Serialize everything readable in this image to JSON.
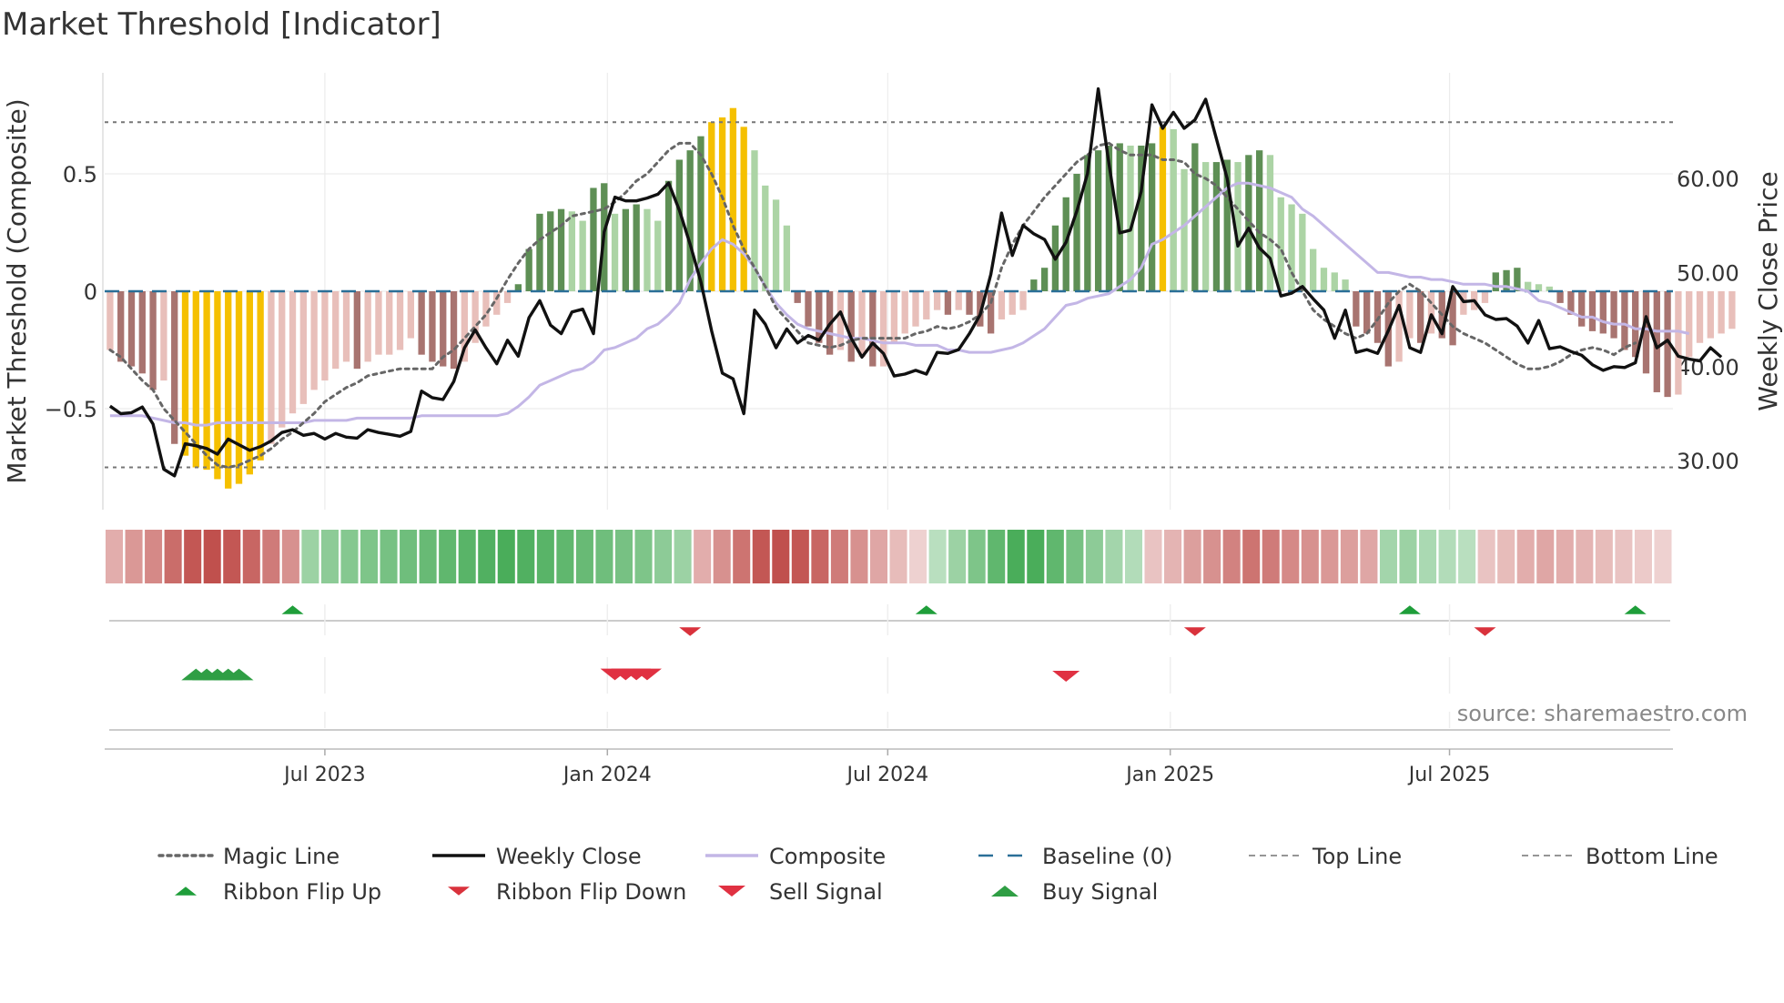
{
  "chart_data": {
    "type": "combo",
    "title": "Market Threshold [Indicator]",
    "ylabel_left": "Market Threshold (Composite)",
    "ylabel_right": "Weekly Close Price",
    "ylim_left": [
      -0.93,
      0.93
    ],
    "ylim_right": [
      24.8,
      71.2
    ],
    "yticks_left": [
      {
        "label": "0.5",
        "value": 0.5
      },
      {
        "label": "0",
        "value": 0
      },
      {
        "label": "−0.5",
        "value": -0.5
      }
    ],
    "yticks_right": [
      {
        "label": "60.00",
        "value": 60
      },
      {
        "label": "50.00",
        "value": 50
      },
      {
        "label": "40.00",
        "value": 40
      },
      {
        "label": "30.00",
        "value": 30
      }
    ],
    "x_range": [
      0,
      146
    ],
    "xticks": [
      {
        "label": "Jul 2023",
        "week": 20.5
      },
      {
        "label": "Jan 2024",
        "week": 46.8
      },
      {
        "label": "Jul 2024",
        "week": 72.9
      },
      {
        "label": "Jan 2025",
        "week": 99.2
      },
      {
        "label": "Jul 2025",
        "week": 125.2
      }
    ],
    "top_line": 0.72,
    "bottom_line": -0.75,
    "baseline": 0,
    "composite_bars": [
      -0.25,
      -0.3,
      -0.32,
      -0.35,
      -0.42,
      -0.38,
      -0.65,
      -0.7,
      -0.75,
      -0.76,
      -0.8,
      -0.84,
      -0.82,
      -0.78,
      -0.72,
      -0.65,
      -0.58,
      -0.52,
      -0.48,
      -0.42,
      -0.38,
      -0.33,
      -0.3,
      -0.33,
      -0.3,
      -0.27,
      -0.27,
      -0.25,
      -0.2,
      -0.27,
      -0.3,
      -0.32,
      -0.33,
      -0.3,
      -0.22,
      -0.15,
      -0.1,
      -0.05,
      0.03,
      0.18,
      0.33,
      0.34,
      0.35,
      0.34,
      0.3,
      0.44,
      0.46,
      0.33,
      0.35,
      0.37,
      0.35,
      0.3,
      0.47,
      0.56,
      0.6,
      0.66,
      0.72,
      0.74,
      0.78,
      0.7,
      0.6,
      0.45,
      0.39,
      0.28,
      -0.05,
      -0.15,
      -0.22,
      -0.27,
      -0.25,
      -0.3,
      -0.28,
      -0.32,
      -0.32,
      -0.22,
      -0.18,
      -0.15,
      -0.12,
      -0.08,
      -0.1,
      -0.08,
      -0.1,
      -0.15,
      -0.18,
      -0.12,
      -0.1,
      -0.08,
      0.05,
      0.1,
      0.28,
      0.4,
      0.5,
      0.58,
      0.6,
      0.62,
      0.63,
      0.62,
      0.62,
      0.63,
      0.7,
      0.69,
      0.52,
      0.63,
      0.55,
      0.55,
      0.56,
      0.55,
      0.58,
      0.6,
      0.58,
      0.4,
      0.37,
      0.33,
      0.18,
      0.1,
      0.08,
      0.05,
      -0.15,
      -0.18,
      -0.22,
      -0.32,
      -0.3,
      -0.2,
      -0.22,
      -0.18,
      -0.2,
      -0.23,
      -0.1,
      -0.08,
      -0.05,
      0.08,
      0.09,
      0.1,
      0.04,
      0.03,
      0.02,
      -0.05,
      -0.1,
      -0.15,
      -0.17,
      -0.18,
      -0.2,
      -0.25,
      -0.28,
      -0.35,
      -0.43,
      -0.45,
      -0.44,
      -0.28,
      -0.22,
      -0.2,
      -0.18,
      -0.16
    ],
    "composite_line": [
      -0.53,
      -0.53,
      -0.53,
      -0.53,
      -0.54,
      -0.55,
      -0.56,
      -0.56,
      -0.57,
      -0.57,
      -0.56,
      -0.56,
      -0.56,
      -0.56,
      -0.56,
      -0.56,
      -0.56,
      -0.56,
      -0.56,
      -0.55,
      -0.55,
      -0.55,
      -0.55,
      -0.54,
      -0.54,
      -0.54,
      -0.54,
      -0.54,
      -0.54,
      -0.53,
      -0.53,
      -0.53,
      -0.53,
      -0.53,
      -0.53,
      -0.53,
      -0.53,
      -0.52,
      -0.49,
      -0.45,
      -0.4,
      -0.38,
      -0.36,
      -0.34,
      -0.33,
      -0.3,
      -0.25,
      -0.24,
      -0.22,
      -0.2,
      -0.16,
      -0.14,
      -0.1,
      -0.05,
      0.05,
      0.12,
      0.18,
      0.22,
      0.2,
      0.16,
      0.1,
      0.02,
      -0.05,
      -0.1,
      -0.14,
      -0.16,
      -0.17,
      -0.18,
      -0.19,
      -0.2,
      -0.2,
      -0.21,
      -0.22,
      -0.22,
      -0.22,
      -0.23,
      -0.23,
      -0.23,
      -0.25,
      -0.25,
      -0.26,
      -0.26,
      -0.26,
      -0.25,
      -0.24,
      -0.22,
      -0.19,
      -0.16,
      -0.11,
      -0.06,
      -0.05,
      -0.03,
      -0.02,
      -0.01,
      0.02,
      0.05,
      0.1,
      0.2,
      0.22,
      0.25,
      0.28,
      0.32,
      0.36,
      0.4,
      0.44,
      0.46,
      0.46,
      0.45,
      0.44,
      0.42,
      0.4,
      0.35,
      0.32,
      0.28,
      0.24,
      0.2,
      0.16,
      0.12,
      0.08,
      0.08,
      0.07,
      0.06,
      0.06,
      0.05,
      0.05,
      0.04,
      0.03,
      0.03,
      0.03,
      0.02,
      0.02,
      0.01,
      0.0,
      -0.04,
      -0.05,
      -0.07,
      -0.09,
      -0.11,
      -0.11,
      -0.13,
      -0.14,
      -0.14,
      -0.16,
      -0.16,
      -0.17,
      -0.17,
      -0.17,
      -0.18
    ],
    "magic_line": [
      -0.25,
      -0.28,
      -0.33,
      -0.38,
      -0.42,
      -0.5,
      -0.55,
      -0.6,
      -0.65,
      -0.7,
      -0.74,
      -0.75,
      -0.74,
      -0.72,
      -0.7,
      -0.67,
      -0.63,
      -0.6,
      -0.56,
      -0.52,
      -0.47,
      -0.44,
      -0.41,
      -0.39,
      -0.36,
      -0.35,
      -0.34,
      -0.33,
      -0.33,
      -0.33,
      -0.33,
      -0.28,
      -0.25,
      -0.2,
      -0.15,
      -0.1,
      -0.03,
      0.05,
      0.12,
      0.18,
      0.22,
      0.25,
      0.28,
      0.32,
      0.33,
      0.34,
      0.35,
      0.38,
      0.42,
      0.47,
      0.5,
      0.55,
      0.6,
      0.63,
      0.63,
      0.58,
      0.5,
      0.4,
      0.28,
      0.18,
      0.1,
      0.02,
      -0.07,
      -0.12,
      -0.17,
      -0.22,
      -0.23,
      -0.24,
      -0.23,
      -0.21,
      -0.2,
      -0.2,
      -0.2,
      -0.2,
      -0.2,
      -0.18,
      -0.17,
      -0.15,
      -0.16,
      -0.15,
      -0.13,
      -0.1,
      -0.05,
      0.1,
      0.2,
      0.28,
      0.34,
      0.4,
      0.45,
      0.5,
      0.55,
      0.58,
      0.62,
      0.63,
      0.6,
      0.58,
      0.58,
      0.58,
      0.56,
      0.56,
      0.55,
      0.5,
      0.48,
      0.45,
      0.4,
      0.35,
      0.3,
      0.25,
      0.22,
      0.18,
      0.08,
      0.0,
      -0.08,
      -0.12,
      -0.15,
      -0.18,
      -0.2,
      -0.18,
      -0.12,
      -0.05,
      0.0,
      0.03,
      0.0,
      -0.05,
      -0.1,
      -0.15,
      -0.18,
      -0.2,
      -0.22,
      -0.25,
      -0.28,
      -0.31,
      -0.33,
      -0.33,
      -0.32,
      -0.3,
      -0.27,
      -0.25,
      -0.24,
      -0.25,
      -0.27,
      -0.24,
      -0.22
    ],
    "weekly_close": [
      35.8,
      35.0,
      35.1,
      35.7,
      33.9,
      29.1,
      28.4,
      31.8,
      31.6,
      31.3,
      30.7,
      32.3,
      31.7,
      31.1,
      31.5,
      32.1,
      33.0,
      33.3,
      32.7,
      32.9,
      32.3,
      32.9,
      32.5,
      32.4,
      33.3,
      33.0,
      32.8,
      32.6,
      33.1,
      37.4,
      36.7,
      36.5,
      38.4,
      42.0,
      43.9,
      42.0,
      40.3,
      42.8,
      41.1,
      45.2,
      47.0,
      44.4,
      43.5,
      45.8,
      46.1,
      43.5,
      54.3,
      58.0,
      57.6,
      57.6,
      57.9,
      58.3,
      59.5,
      56.6,
      53.0,
      49.0,
      43.8,
      39.3,
      38.7,
      35.0,
      46.0,
      44.5,
      42.0,
      44.0,
      42.5,
      43.3,
      42.8,
      44.5,
      45.8,
      43.0,
      41.0,
      42.5,
      41.4,
      39.0,
      39.2,
      39.6,
      39.2,
      41.5,
      41.4,
      41.8,
      43.5,
      45.5,
      49.8,
      56.3,
      51.8,
      55.0,
      54.1,
      53.5,
      51.4,
      53.2,
      56.5,
      60.5,
      69.5,
      61.5,
      54.2,
      54.5,
      58.6,
      67.8,
      65.3,
      67.0,
      65.3,
      66.2,
      68.4,
      64.2,
      60.0,
      52.8,
      54.7,
      52.6,
      51.5,
      47.5,
      47.8,
      48.5,
      47.2,
      46.0,
      43.0,
      46.0,
      41.5,
      41.8,
      41.4,
      43.8,
      46.5,
      42.0,
      41.5,
      45.5,
      43.5,
      48.5,
      46.9,
      47.0,
      45.5,
      45.0,
      45.1,
      44.3,
      42.5,
      44.9,
      41.9,
      42.1,
      41.6,
      41.2,
      40.2,
      39.6,
      40.0,
      39.9,
      40.4,
      45.3,
      42.0,
      42.8,
      41.1,
      40.8,
      40.6,
      42.0,
      41.0
    ],
    "ribbon": [
      -0.35,
      -0.5,
      -0.6,
      -0.8,
      -0.95,
      -1.0,
      -0.95,
      -0.85,
      -0.7,
      -0.55,
      0.45,
      0.55,
      0.6,
      0.65,
      0.7,
      0.75,
      0.8,
      0.85,
      0.9,
      0.95,
      1.0,
      0.95,
      0.9,
      0.85,
      0.8,
      0.75,
      0.7,
      0.65,
      0.55,
      0.45,
      -0.35,
      -0.55,
      -0.75,
      -0.95,
      -1.0,
      -0.95,
      -0.85,
      -0.7,
      -0.55,
      -0.4,
      -0.25,
      -0.1,
      0.25,
      0.45,
      0.65,
      0.85,
      1.0,
      1.0,
      0.85,
      0.7,
      0.55,
      0.4,
      0.3,
      -0.2,
      -0.3,
      -0.45,
      -0.55,
      -0.65,
      -0.75,
      -0.7,
      -0.6,
      -0.55,
      -0.5,
      -0.45,
      -0.4,
      0.4,
      0.45,
      0.35,
      0.3,
      0.25,
      -0.2,
      -0.25,
      -0.35,
      -0.4,
      -0.35,
      -0.3,
      -0.25,
      -0.2,
      -0.15,
      -0.1
    ],
    "signals": [
      {
        "label": "Ribbon Flip Up",
        "row": 1,
        "weeks": [
          17,
          76,
          121,
          142
        ],
        "color": "#1f9e3a",
        "dir": "up"
      },
      {
        "label": "Ribbon Flip Down",
        "row": 1,
        "weeks": [
          54,
          101,
          128
        ],
        "color": "#d9323c",
        "dir": "down"
      },
      {
        "label": "Buy Signal",
        "row": 2,
        "weeks": [
          8,
          9,
          10,
          11,
          12
        ],
        "color": "#2f9e44",
        "dir": "up"
      },
      {
        "label": "Sell Signal",
        "row": 2,
        "weeks": [
          47,
          48,
          49,
          50
        ],
        "color": "#e03142",
        "dir": "down"
      }
    ],
    "sell_signal_extra": [
      89
    ],
    "legend": [
      {
        "label": "Magic Line",
        "kind": "dotted",
        "color": "#666666"
      },
      {
        "label": "Weekly Close",
        "kind": "solid",
        "color": "#111111"
      },
      {
        "label": "Composite",
        "kind": "solid",
        "color": "#c3b6e6"
      },
      {
        "label": "Baseline (0)",
        "kind": "dashed",
        "color": "#2a6f97"
      },
      {
        "label": "Top Line",
        "kind": "dashed-thin",
        "color": "#888888"
      },
      {
        "label": "Bottom Line",
        "kind": "dashed-thin",
        "color": "#888888"
      },
      {
        "label": "Ribbon Flip Up",
        "kind": "tri-up",
        "color": "#1f9e3a"
      },
      {
        "label": "Ribbon Flip Down",
        "kind": "tri-down",
        "color": "#d9323c"
      },
      {
        "label": "Sell Signal",
        "kind": "tri-down-big",
        "color": "#e03142"
      },
      {
        "label": "Buy Signal",
        "kind": "tri-up-big",
        "color": "#2f9e44"
      }
    ],
    "source": "source: sharemaestro.com",
    "colors": {
      "bar_pos_dark": "#5e8f55",
      "bar_pos_light": "#acd4a5",
      "bar_neg_dark": "#a87470",
      "bar_neg_light": "#e8bfba",
      "bar_extreme": "#f5c000",
      "grid": "#ececec",
      "axis": "#cccccc",
      "ribbon_pos": "#4aad5a",
      "ribbon_neg": "#c0504d"
    }
  }
}
